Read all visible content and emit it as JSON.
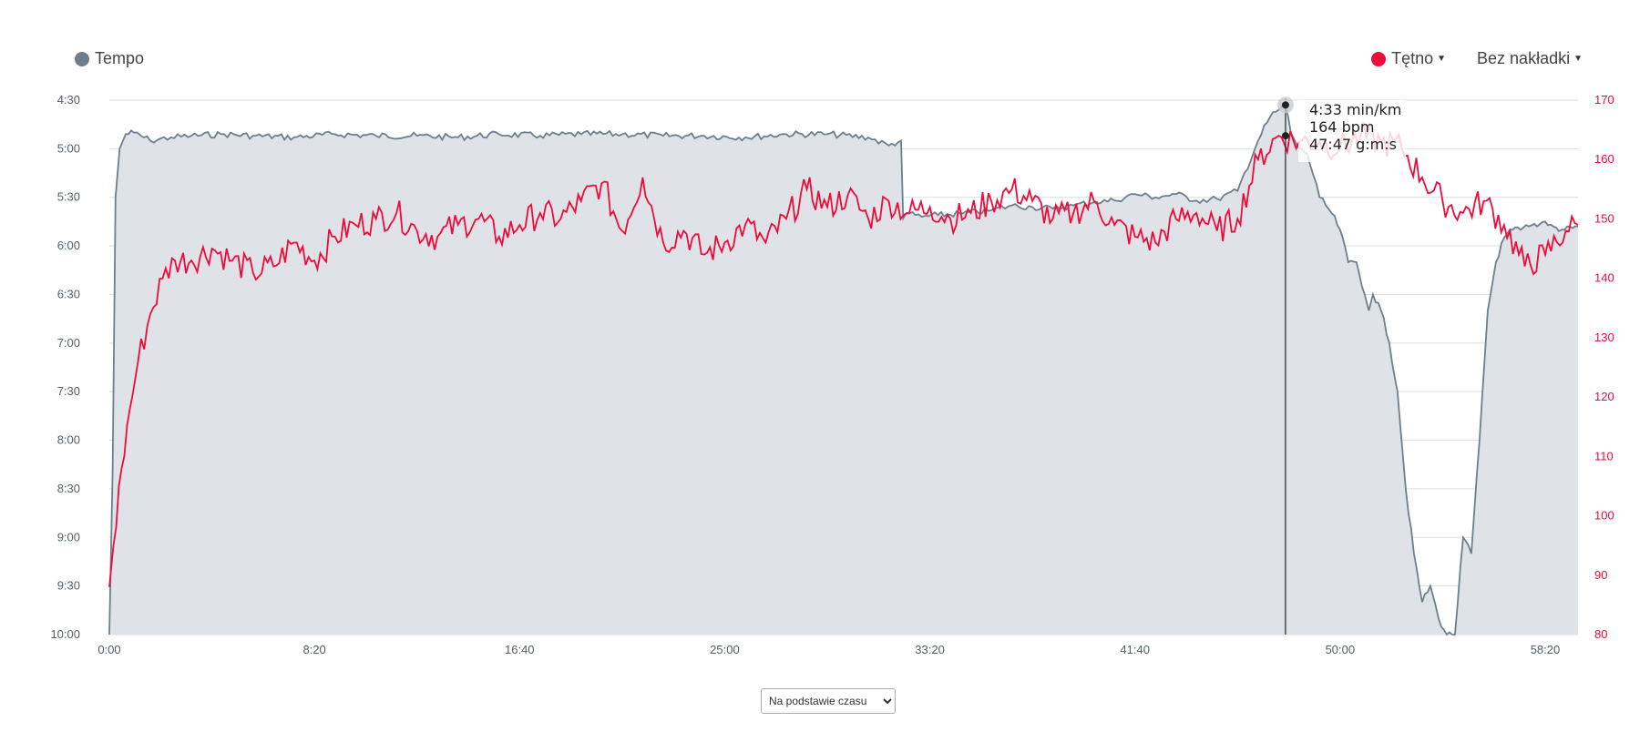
{
  "legend": {
    "pace_label": "Tempo",
    "hr_label": "Tętno",
    "overlay_label": "Bez nakładki",
    "pace_color": "#6e7f8b",
    "hr_color": "#ee0b3c"
  },
  "basis_select": {
    "selected": "Na podstawie czasu"
  },
  "tooltip": {
    "pace": "4:33 min/km",
    "hr": "164 bpm",
    "time": "47:47 g:m:s"
  },
  "chart_data": {
    "type": "line",
    "x_unit": "seconds",
    "x_ticks": [
      "0:00",
      "8:20",
      "16:40",
      "25:00",
      "33:20",
      "41:40",
      "50:00",
      "58:20"
    ],
    "x_tick_values": [
      0,
      500,
      1000,
      1500,
      2000,
      2500,
      3000,
      3500
    ],
    "xlim": [
      0,
      3580
    ],
    "y_left_ticks": [
      "4:30",
      "5:00",
      "5:30",
      "6:00",
      "6:30",
      "7:00",
      "7:30",
      "8:00",
      "8:30",
      "9:00",
      "9:30",
      "10:00"
    ],
    "y_left_lim_seconds_per_km": [
      270,
      600
    ],
    "y_left_reversed": true,
    "y_right_ticks": [
      "170",
      "160",
      "150",
      "140",
      "130",
      "120",
      "110",
      "100",
      "90",
      "80"
    ],
    "y_right_lim": [
      80,
      170
    ],
    "grid": true,
    "crosshair_x": 2867,
    "series": [
      {
        "name": "Tempo",
        "axis": "left",
        "style": "area",
        "x": [
          0,
          8,
          15,
          25,
          40,
          60,
          100,
          150,
          200,
          280,
          350,
          450,
          550,
          650,
          750,
          850,
          950,
          1050,
          1150,
          1250,
          1350,
          1450,
          1550,
          1650,
          1750,
          1850,
          1900,
          1930,
          1935,
          1950,
          1980,
          2020,
          2080,
          2150,
          2200,
          2250,
          2300,
          2350,
          2400,
          2450,
          2500,
          2550,
          2600,
          2650,
          2700,
          2750,
          2800,
          2830,
          2850,
          2867,
          2880,
          2900,
          2920,
          2950,
          2980,
          3000,
          3020,
          3040,
          3060,
          3070,
          3080,
          3100,
          3120,
          3140,
          3160,
          3180,
          3200,
          3220,
          3240,
          3260,
          3280,
          3300,
          3320,
          3340,
          3360,
          3380,
          3400,
          3420,
          3440,
          3460,
          3480,
          3500,
          3520,
          3540,
          3560,
          3580
        ],
        "y": [
          600,
          500,
          330,
          300,
          291,
          290,
          295,
          293,
          292,
          291,
          292,
          293,
          291,
          292,
          292,
          293,
          291,
          292,
          291,
          291,
          292,
          292,
          293,
          291,
          291,
          293,
          298,
          295,
          343,
          340,
          342,
          341,
          340,
          338,
          335,
          336,
          337,
          335,
          333,
          332,
          328,
          330,
          328,
          332,
          331,
          326,
          295,
          280,
          276,
          273,
          290,
          300,
          303,
          330,
          340,
          350,
          370,
          370,
          390,
          400,
          390,
          400,
          420,
          450,
          510,
          550,
          580,
          570,
          590,
          600,
          600,
          540,
          550,
          480,
          400,
          370,
          355,
          350,
          350,
          348,
          348,
          345,
          348,
          350,
          348,
          348
        ]
      },
      {
        "name": "Tętno",
        "axis": "right",
        "style": "line",
        "x": [
          0,
          10,
          30,
          50,
          70,
          100,
          130,
          160,
          200,
          250,
          300,
          350,
          400,
          450,
          500,
          550,
          600,
          650,
          700,
          750,
          800,
          850,
          900,
          950,
          1000,
          1050,
          1100,
          1150,
          1200,
          1250,
          1300,
          1350,
          1400,
          1450,
          1500,
          1550,
          1600,
          1650,
          1700,
          1750,
          1800,
          1850,
          1900,
          1950,
          2000,
          2050,
          2100,
          2150,
          2200,
          2250,
          2300,
          2350,
          2400,
          2450,
          2500,
          2550,
          2600,
          2650,
          2700,
          2750,
          2800,
          2850,
          2900,
          2950,
          3000,
          3050,
          3100,
          3150,
          3200,
          3250,
          3300,
          3350,
          3400,
          3450,
          3500,
          3550,
          3580
        ],
        "y": [
          88,
          95,
          108,
          118,
          126,
          134,
          140,
          143,
          143,
          145,
          143,
          141,
          142,
          146,
          143,
          147,
          149,
          150,
          151,
          148,
          147,
          149,
          150,
          147,
          149,
          151,
          150,
          153,
          156,
          148,
          157,
          146,
          148,
          144,
          146,
          149,
          146,
          150,
          155,
          152,
          154,
          150,
          153,
          151,
          152,
          150,
          151,
          153,
          155,
          153,
          150,
          151,
          153,
          149,
          147,
          146,
          150,
          151,
          148,
          150,
          160,
          164,
          163,
          163,
          162,
          164,
          163,
          162,
          157,
          153,
          151,
          153,
          149,
          142,
          144,
          148,
          149
        ]
      }
    ]
  }
}
